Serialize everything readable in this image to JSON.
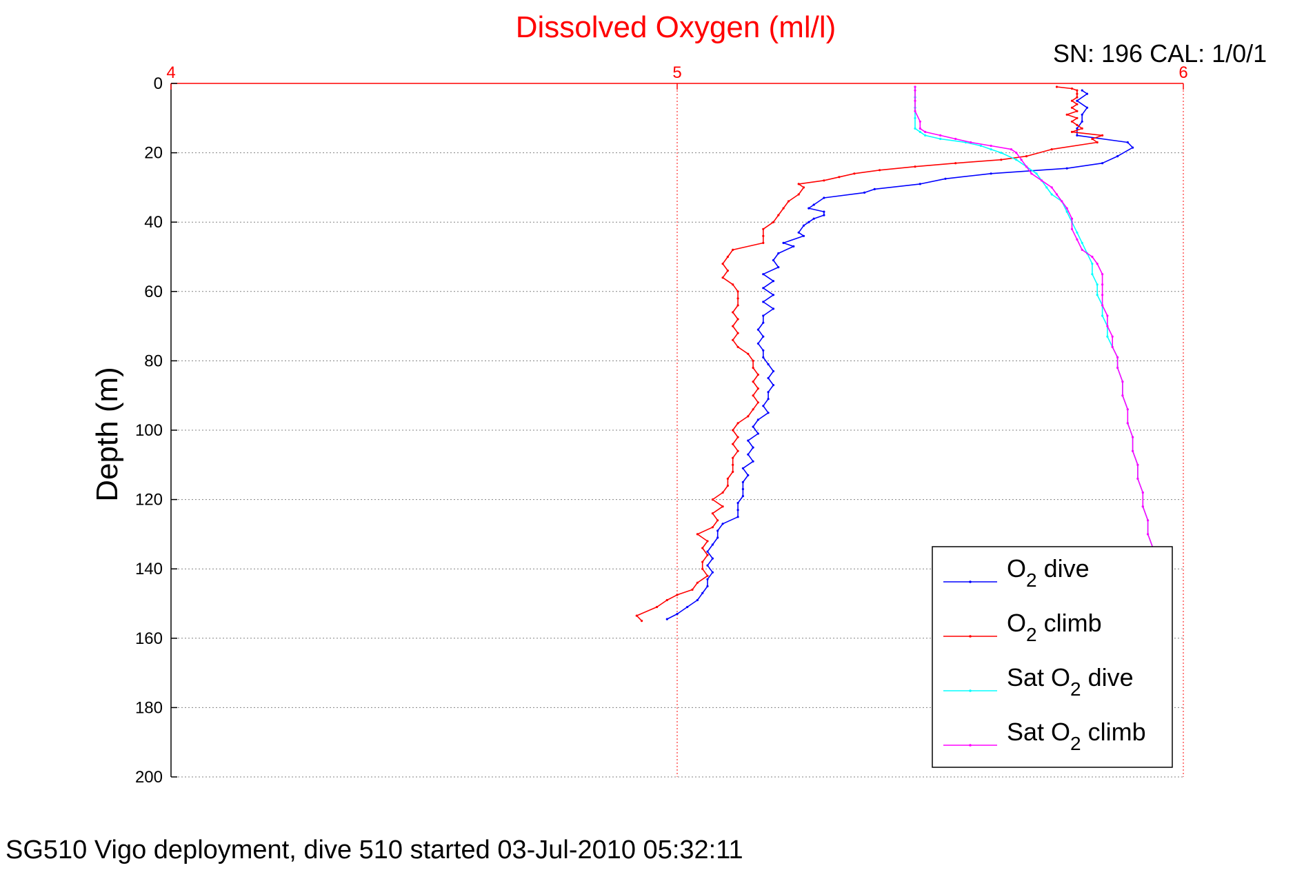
{
  "chart_data": {
    "type": "line",
    "title": "Dissolved Oxygen (ml/l)",
    "calibration_label": "SN: 196  CAL: 1/0/1",
    "ylabel": "Depth (m)",
    "footer": "SG510 Vigo deployment, dive 510 started 03-Jul-2010 05:32:11",
    "x_axis_position": "top",
    "y_axis_reversed": true,
    "xlim": [
      4,
      6
    ],
    "ylim": [
      0,
      200
    ],
    "x_ticks": [
      "4",
      "5",
      "6"
    ],
    "y_ticks": [
      "0",
      "20",
      "40",
      "60",
      "80",
      "100",
      "120",
      "140",
      "160",
      "180",
      "200"
    ],
    "grid": true,
    "legend_position": "bottom-right",
    "colors": {
      "axis_top": "#ff0000",
      "title": "#ff0000",
      "grid": "#808080"
    },
    "series": [
      {
        "name_base": "O",
        "name_sub": "2",
        "name_tail": " dive",
        "color": "#0000ff",
        "points": [
          [
            5.8,
            2
          ],
          [
            5.81,
            3
          ],
          [
            5.79,
            5
          ],
          [
            5.81,
            7
          ],
          [
            5.8,
            9
          ],
          [
            5.8,
            11
          ],
          [
            5.79,
            13
          ],
          [
            5.79,
            15
          ],
          [
            5.89,
            17
          ],
          [
            5.9,
            18.5
          ],
          [
            5.87,
            21
          ],
          [
            5.84,
            23
          ],
          [
            5.77,
            24.5
          ],
          [
            5.62,
            26
          ],
          [
            5.53,
            27.5
          ],
          [
            5.48,
            29
          ],
          [
            5.39,
            30.5
          ],
          [
            5.37,
            31.5
          ],
          [
            5.29,
            33
          ],
          [
            5.27,
            35
          ],
          [
            5.26,
            36
          ],
          [
            5.29,
            37
          ],
          [
            5.29,
            38
          ],
          [
            5.27,
            39
          ],
          [
            5.26,
            40
          ],
          [
            5.25,
            41
          ],
          [
            5.24,
            43
          ],
          [
            5.25,
            44
          ],
          [
            5.21,
            46
          ],
          [
            5.23,
            47
          ],
          [
            5.2,
            49
          ],
          [
            5.19,
            51
          ],
          [
            5.2,
            53
          ],
          [
            5.17,
            55
          ],
          [
            5.19,
            57
          ],
          [
            5.17,
            59
          ],
          [
            5.19,
            61
          ],
          [
            5.17,
            63
          ],
          [
            5.19,
            65
          ],
          [
            5.17,
            67
          ],
          [
            5.17,
            69
          ],
          [
            5.16,
            71
          ],
          [
            5.17,
            73
          ],
          [
            5.16,
            75
          ],
          [
            5.17,
            77
          ],
          [
            5.17,
            79
          ],
          [
            5.18,
            81
          ],
          [
            5.19,
            83
          ],
          [
            5.18,
            85
          ],
          [
            5.19,
            87
          ],
          [
            5.18,
            89
          ],
          [
            5.18,
            91
          ],
          [
            5.17,
            93
          ],
          [
            5.18,
            95
          ],
          [
            5.16,
            97
          ],
          [
            5.15,
            99
          ],
          [
            5.16,
            101
          ],
          [
            5.14,
            103
          ],
          [
            5.15,
            105
          ],
          [
            5.14,
            107
          ],
          [
            5.15,
            109
          ],
          [
            5.13,
            111
          ],
          [
            5.14,
            113
          ],
          [
            5.13,
            115
          ],
          [
            5.13,
            117
          ],
          [
            5.13,
            119
          ],
          [
            5.12,
            121
          ],
          [
            5.12,
            123
          ],
          [
            5.12,
            125
          ],
          [
            5.09,
            127
          ],
          [
            5.08,
            129
          ],
          [
            5.08,
            131
          ],
          [
            5.07,
            133
          ],
          [
            5.06,
            135
          ],
          [
            5.07,
            137
          ],
          [
            5.06,
            139
          ],
          [
            5.07,
            141
          ],
          [
            5.06,
            143
          ],
          [
            5.06,
            145
          ],
          [
            5.05,
            147
          ],
          [
            5.04,
            149
          ],
          [
            5.02,
            151
          ],
          [
            5.0,
            153
          ],
          [
            4.98,
            154.5
          ]
        ]
      },
      {
        "name_base": "O",
        "name_sub": "2",
        "name_tail": " climb",
        "color": "#ff0000",
        "points": [
          [
            4.93,
            155
          ],
          [
            4.92,
            153.5
          ],
          [
            4.96,
            151
          ],
          [
            4.98,
            149
          ],
          [
            5.0,
            147.5
          ],
          [
            5.03,
            146
          ],
          [
            5.04,
            144
          ],
          [
            5.06,
            142
          ],
          [
            5.05,
            140
          ],
          [
            5.05,
            138
          ],
          [
            5.06,
            136
          ],
          [
            5.05,
            134
          ],
          [
            5.06,
            132
          ],
          [
            5.04,
            130
          ],
          [
            5.07,
            128
          ],
          [
            5.08,
            126
          ],
          [
            5.07,
            124
          ],
          [
            5.09,
            122
          ],
          [
            5.07,
            120
          ],
          [
            5.09,
            118
          ],
          [
            5.1,
            116
          ],
          [
            5.1,
            114
          ],
          [
            5.11,
            112
          ],
          [
            5.11,
            110
          ],
          [
            5.11,
            108
          ],
          [
            5.12,
            106
          ],
          [
            5.11,
            104
          ],
          [
            5.12,
            102
          ],
          [
            5.11,
            100
          ],
          [
            5.12,
            98
          ],
          [
            5.14,
            96
          ],
          [
            5.15,
            94
          ],
          [
            5.16,
            92
          ],
          [
            5.15,
            90
          ],
          [
            5.16,
            88
          ],
          [
            5.15,
            86
          ],
          [
            5.16,
            84
          ],
          [
            5.15,
            82
          ],
          [
            5.15,
            80
          ],
          [
            5.14,
            78
          ],
          [
            5.12,
            76
          ],
          [
            5.11,
            74
          ],
          [
            5.12,
            72
          ],
          [
            5.11,
            70
          ],
          [
            5.12,
            68
          ],
          [
            5.11,
            66
          ],
          [
            5.12,
            64
          ],
          [
            5.12,
            62
          ],
          [
            5.12,
            60
          ],
          [
            5.11,
            58
          ],
          [
            5.09,
            56
          ],
          [
            5.1,
            54
          ],
          [
            5.09,
            52
          ],
          [
            5.1,
            50
          ],
          [
            5.11,
            48
          ],
          [
            5.17,
            46
          ],
          [
            5.17,
            44
          ],
          [
            5.17,
            42
          ],
          [
            5.19,
            40
          ],
          [
            5.2,
            38
          ],
          [
            5.21,
            36
          ],
          [
            5.22,
            34
          ],
          [
            5.24,
            32
          ],
          [
            5.25,
            30
          ],
          [
            5.24,
            29
          ],
          [
            5.29,
            28
          ],
          [
            5.32,
            27
          ],
          [
            5.35,
            26
          ],
          [
            5.4,
            25
          ],
          [
            5.47,
            24
          ],
          [
            5.55,
            23
          ],
          [
            5.64,
            22
          ],
          [
            5.69,
            21
          ],
          [
            5.74,
            19
          ],
          [
            5.83,
            17
          ],
          [
            5.82,
            16
          ],
          [
            5.84,
            15
          ],
          [
            5.78,
            14
          ],
          [
            5.8,
            13
          ],
          [
            5.79,
            12
          ],
          [
            5.78,
            11
          ],
          [
            5.79,
            10
          ],
          [
            5.77,
            9
          ],
          [
            5.79,
            8
          ],
          [
            5.78,
            7
          ],
          [
            5.79,
            6
          ],
          [
            5.78,
            5
          ],
          [
            5.79,
            4
          ],
          [
            5.79,
            3
          ],
          [
            5.79,
            2
          ],
          [
            5.78,
            1.5
          ],
          [
            5.75,
            1
          ]
        ]
      },
      {
        "name_base": "Sat O",
        "name_sub": "2",
        "name_tail": " dive",
        "color": "#00ffff",
        "points": [
          [
            5.47,
            1
          ],
          [
            5.47,
            4
          ],
          [
            5.47,
            7
          ],
          [
            5.47,
            10
          ],
          [
            5.47,
            13
          ],
          [
            5.48,
            14
          ],
          [
            5.49,
            15
          ],
          [
            5.52,
            16
          ],
          [
            5.57,
            17
          ],
          [
            5.6,
            18
          ],
          [
            5.62,
            19
          ],
          [
            5.64,
            20
          ],
          [
            5.67,
            22
          ],
          [
            5.69,
            24
          ],
          [
            5.71,
            26
          ],
          [
            5.72,
            28
          ],
          [
            5.73,
            30
          ],
          [
            5.74,
            32
          ],
          [
            5.76,
            34
          ],
          [
            5.77,
            37
          ],
          [
            5.78,
            40
          ],
          [
            5.79,
            43
          ],
          [
            5.8,
            46
          ],
          [
            5.81,
            49
          ],
          [
            5.82,
            52
          ],
          [
            5.82,
            55
          ],
          [
            5.83,
            58
          ],
          [
            5.83,
            61
          ],
          [
            5.84,
            64
          ],
          [
            5.84,
            67
          ],
          [
            5.85,
            70
          ],
          [
            5.85,
            73
          ],
          [
            5.86,
            76
          ],
          [
            5.87,
            79
          ],
          [
            5.87,
            82
          ],
          [
            5.88,
            86
          ],
          [
            5.88,
            90
          ],
          [
            5.89,
            94
          ],
          [
            5.89,
            98
          ],
          [
            5.9,
            102
          ],
          [
            5.9,
            106
          ],
          [
            5.91,
            110
          ],
          [
            5.91,
            114
          ],
          [
            5.92,
            118
          ],
          [
            5.92,
            122
          ],
          [
            5.93,
            126
          ],
          [
            5.93,
            130
          ],
          [
            5.94,
            134
          ]
        ]
      },
      {
        "name_base": "Sat O",
        "name_sub": "2",
        "name_tail": " climb",
        "color": "#ff00ff",
        "points": [
          [
            5.94,
            134
          ],
          [
            5.93,
            130
          ],
          [
            5.93,
            126
          ],
          [
            5.92,
            122
          ],
          [
            5.92,
            118
          ],
          [
            5.91,
            114
          ],
          [
            5.91,
            110
          ],
          [
            5.9,
            106
          ],
          [
            5.9,
            102
          ],
          [
            5.89,
            98
          ],
          [
            5.89,
            94
          ],
          [
            5.88,
            90
          ],
          [
            5.88,
            86
          ],
          [
            5.87,
            82
          ],
          [
            5.87,
            79
          ],
          [
            5.86,
            76
          ],
          [
            5.86,
            73
          ],
          [
            5.85,
            70
          ],
          [
            5.85,
            67
          ],
          [
            5.84,
            64
          ],
          [
            5.84,
            61
          ],
          [
            5.84,
            58
          ],
          [
            5.84,
            55
          ],
          [
            5.83,
            52
          ],
          [
            5.82,
            50
          ],
          [
            5.8,
            48
          ],
          [
            5.79,
            45
          ],
          [
            5.78,
            42
          ],
          [
            5.78,
            39
          ],
          [
            5.77,
            36
          ],
          [
            5.76,
            34
          ],
          [
            5.75,
            32
          ],
          [
            5.74,
            30
          ],
          [
            5.72,
            28
          ],
          [
            5.7,
            26
          ],
          [
            5.69,
            24
          ],
          [
            5.68,
            22
          ],
          [
            5.67,
            20
          ],
          [
            5.66,
            19
          ],
          [
            5.62,
            18
          ],
          [
            5.58,
            17
          ],
          [
            5.55,
            16
          ],
          [
            5.52,
            15
          ],
          [
            5.49,
            14
          ],
          [
            5.48,
            13
          ],
          [
            5.48,
            11
          ],
          [
            5.47,
            8
          ],
          [
            5.47,
            5
          ],
          [
            5.47,
            2
          ],
          [
            5.47,
            1
          ]
        ]
      }
    ]
  }
}
